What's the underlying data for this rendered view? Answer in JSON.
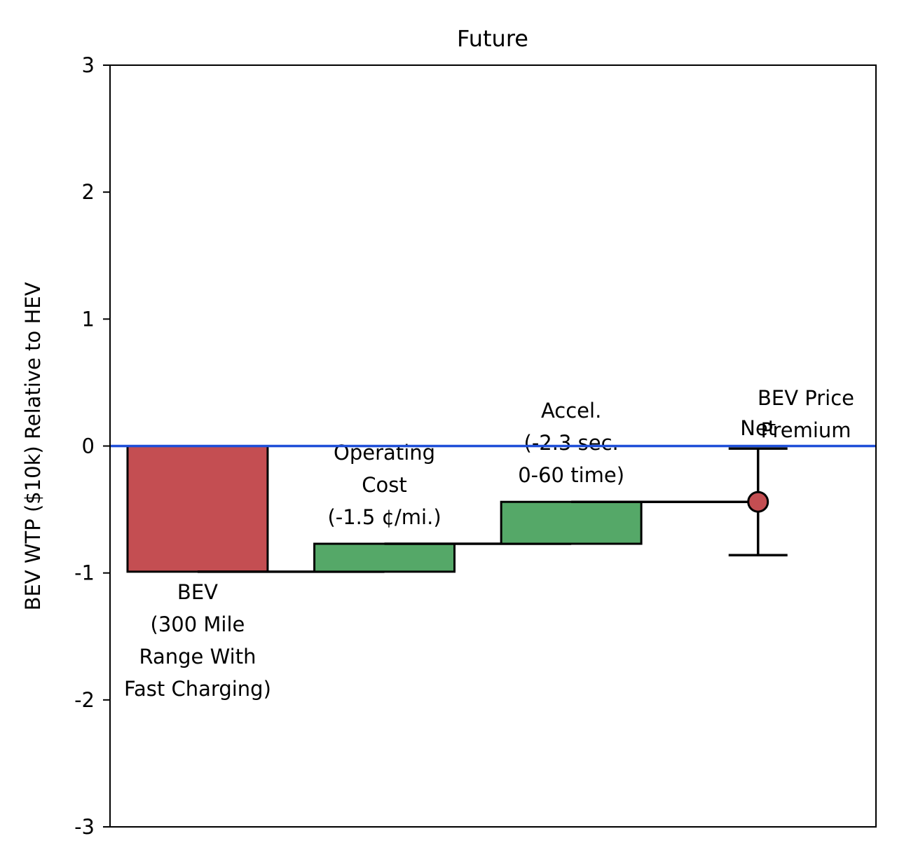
{
  "chart_data": {
    "type": "bar",
    "subtype": "waterfall",
    "title": "Future",
    "xlabel": "",
    "ylabel": "BEV WTP ($10k) Relative to HEV",
    "ylim": [
      -3,
      3
    ],
    "yticks": [
      "-3",
      "-2",
      "-1",
      "0",
      "1",
      "2",
      "3"
    ],
    "grid": false,
    "steps": [
      {
        "label_lines": [
          "BEV",
          "(300 Mile",
          "Range With",
          "Fast Charging)"
        ],
        "start": 0,
        "end": -0.99,
        "color": "#c44e52",
        "label_position": "below"
      },
      {
        "label_lines": [
          "Operating",
          "Cost",
          "(-1.5 ¢/mi.)"
        ],
        "start": -0.99,
        "end": -0.77,
        "color": "#55a868",
        "label_position": "above"
      },
      {
        "label_lines": [
          "Accel.",
          "(-2.3 sec.",
          "0-60 time)"
        ],
        "start": -0.77,
        "end": -0.44,
        "color": "#55a868",
        "label_position": "above"
      }
    ],
    "net": {
      "label": "Net",
      "value": -0.44,
      "error_low": -0.86,
      "error_high": -0.02,
      "color": "#c44e52"
    },
    "reference_line": {
      "value": 0,
      "label_lines": [
        "BEV Price",
        "Premium"
      ],
      "color": "#1f4fd8"
    }
  }
}
